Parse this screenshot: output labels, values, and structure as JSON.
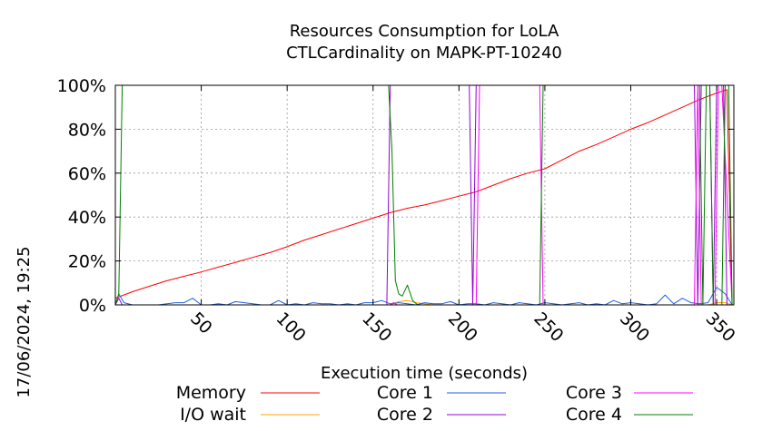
{
  "chart_data": {
    "type": "line",
    "title": [
      "Resources Consumption for LoLA",
      "CTLCardinality on MAPK-PT-10240"
    ],
    "xlabel": "Execution time (seconds)",
    "ylabel": "",
    "side_label": "17/06/2024, 19:25",
    "xlim": [
      0,
      360
    ],
    "ylim": [
      0,
      100
    ],
    "xticks": [
      50,
      100,
      150,
      200,
      250,
      300,
      350
    ],
    "yticks": [
      0,
      20,
      40,
      60,
      80,
      100
    ],
    "ytick_labels": [
      "0%",
      "20%",
      "40%",
      "60%",
      "80%",
      "100%"
    ],
    "grid": true,
    "legend_position": "bottom",
    "series": [
      {
        "name": "Memory",
        "color": "#ff0000",
        "x": [
          0,
          10,
          20,
          30,
          40,
          50,
          60,
          70,
          80,
          90,
          100,
          110,
          120,
          130,
          140,
          150,
          160,
          170,
          180,
          190,
          200,
          210,
          220,
          230,
          240,
          250,
          260,
          270,
          280,
          290,
          300,
          310,
          320,
          330,
          340,
          350,
          356,
          359
        ],
        "y": [
          3,
          6,
          8.5,
          11,
          13,
          15,
          17.2,
          19.4,
          21.6,
          23.8,
          26.5,
          29.5,
          32,
          34.5,
          37,
          39.5,
          42,
          44,
          45.5,
          47.5,
          49.5,
          51.5,
          54.5,
          57.5,
          60,
          62,
          66,
          70,
          73,
          76.5,
          80,
          83,
          86.5,
          90,
          93.5,
          96.5,
          98,
          0
        ]
      },
      {
        "name": "I/O wait",
        "color": "#ffa500",
        "x": [
          0,
          160,
          165,
          170,
          175,
          180,
          185,
          345,
          350,
          355,
          359
        ],
        "y": [
          0,
          0,
          1.5,
          2,
          1,
          0.5,
          0,
          0,
          1,
          1,
          0
        ]
      },
      {
        "name": "Core 1",
        "color": "#1f5ee0",
        "x": [
          0,
          2,
          5,
          10,
          20,
          25,
          30,
          35,
          40,
          45,
          50,
          55,
          60,
          65,
          70,
          75,
          80,
          85,
          90,
          95,
          100,
          105,
          110,
          115,
          120,
          125,
          130,
          135,
          140,
          145,
          150,
          155,
          160,
          165,
          170,
          175,
          180,
          185,
          190,
          195,
          200,
          205,
          210,
          215,
          220,
          225,
          230,
          235,
          240,
          245,
          250,
          255,
          260,
          265,
          270,
          275,
          280,
          285,
          290,
          295,
          300,
          305,
          310,
          315,
          320,
          325,
          330,
          335,
          340,
          345,
          350,
          355,
          359
        ],
        "y": [
          0,
          5,
          1,
          0,
          0,
          0,
          0.5,
          1,
          1,
          3,
          0,
          0,
          0.5,
          0,
          1.5,
          1,
          0.5,
          0,
          0,
          2,
          0,
          0.5,
          0,
          1,
          0.5,
          0.5,
          0,
          0.5,
          0,
          1,
          1,
          2,
          0.5,
          1,
          0.5,
          0,
          1,
          0.5,
          0.5,
          1.5,
          0,
          0.5,
          0.5,
          0,
          1,
          0.5,
          0,
          1,
          0.5,
          0,
          1,
          0.5,
          0,
          0.5,
          1,
          0,
          0.5,
          0,
          2,
          0.5,
          1,
          0.5,
          0,
          0.5,
          4.5,
          0.5,
          3,
          1,
          0.5,
          1,
          8,
          5,
          0
        ]
      },
      {
        "name": "Core 2",
        "color": "#9400d3",
        "x": [
          0,
          2,
          4,
          158,
          160,
          162,
          206,
          208,
          210,
          337,
          339,
          341,
          346,
          348,
          350,
          354,
          356,
          359
        ],
        "y": [
          0,
          3,
          0,
          0,
          100,
          100,
          100,
          0,
          100,
          100,
          0,
          100,
          100,
          0,
          100,
          100,
          0,
          0
        ]
      },
      {
        "name": "Core 3",
        "color": "#ff00ff",
        "x": [
          0,
          160,
          162,
          164,
          208,
          210,
          212,
          247,
          249,
          337,
          339,
          341,
          349,
          351,
          353,
          359
        ],
        "y": [
          0,
          0,
          1,
          0,
          0,
          0,
          100,
          100,
          0,
          0,
          100,
          0,
          0,
          100,
          100,
          0
        ]
      },
      {
        "name": "Core 4",
        "color": "#007f00",
        "x": [
          0,
          2,
          4,
          6,
          157,
          159,
          161,
          163,
          165,
          167,
          170,
          173,
          176,
          180,
          245,
          247,
          249,
          251,
          340,
          342,
          344,
          346,
          348,
          353,
          355,
          357,
          359
        ],
        "y": [
          0,
          5,
          100,
          100,
          100,
          100,
          70,
          11,
          5,
          4,
          9,
          2,
          0,
          0,
          0,
          0,
          100,
          100,
          100,
          0,
          100,
          100,
          0,
          0,
          100,
          100,
          0
        ]
      }
    ]
  }
}
